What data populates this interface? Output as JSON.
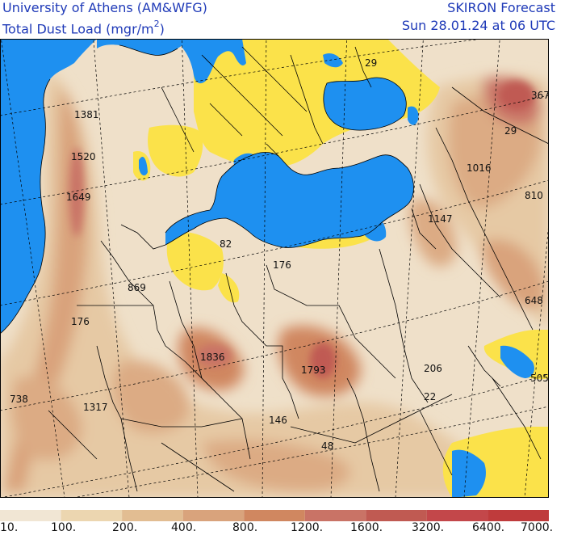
{
  "header": {
    "org": "University of Athens (AM&WFG)",
    "product": "SKIRON Forecast",
    "field_prefix": "Total Dust Load (mgr/m",
    "field_sup": "2",
    "field_suffix": ")",
    "valid": "Sun 28.01.24 at 06 UTC"
  },
  "colors": {
    "sea": "#1e90f0",
    "low_dust": "#fbe24a",
    "land_base": "#efe0c9",
    "border": "#000000",
    "header_text": "#1f3ab8"
  },
  "legend": {
    "ticks": [
      "10.",
      "100.",
      "200.",
      "400.",
      "800.",
      "1200.",
      "1600.",
      "3200.",
      "6400.",
      "7000."
    ],
    "colors": [
      "#f1e6d4",
      "#ecd6b0",
      "#e2bd92",
      "#d9a37c",
      "#d08760",
      "#c97366",
      "#c05a52",
      "#c3474a",
      "#bf3b3c"
    ]
  },
  "values": [
    {
      "text": "1381",
      "name": "value-label-1381"
    },
    {
      "text": "1520",
      "name": "value-label-1520"
    },
    {
      "text": "1649",
      "name": "value-label-1649"
    },
    {
      "text": "869",
      "name": "value-label-869"
    },
    {
      "text": "176",
      "name": "value-label-176-west"
    },
    {
      "text": "82",
      "name": "value-label-82"
    },
    {
      "text": "176",
      "name": "value-label-176-libya"
    },
    {
      "text": "1836",
      "name": "value-label-1836"
    },
    {
      "text": "1793",
      "name": "value-label-1793"
    },
    {
      "text": "738",
      "name": "value-label-738"
    },
    {
      "text": "1317",
      "name": "value-label-1317"
    },
    {
      "text": "146",
      "name": "value-label-146"
    },
    {
      "text": "48",
      "name": "value-label-48"
    },
    {
      "text": "206",
      "name": "value-label-206"
    },
    {
      "text": "22",
      "name": "value-label-22"
    },
    {
      "text": "1147",
      "name": "value-label-1147"
    },
    {
      "text": "1016",
      "name": "value-label-1016"
    },
    {
      "text": "810",
      "name": "value-label-810"
    },
    {
      "text": "648",
      "name": "value-label-648"
    },
    {
      "text": "505",
      "name": "value-label-505"
    },
    {
      "text": "29",
      "name": "value-label-29-caucasus"
    },
    {
      "text": "29",
      "name": "value-label-29-north"
    },
    {
      "text": "367",
      "name": "value-label-367"
    }
  ]
}
